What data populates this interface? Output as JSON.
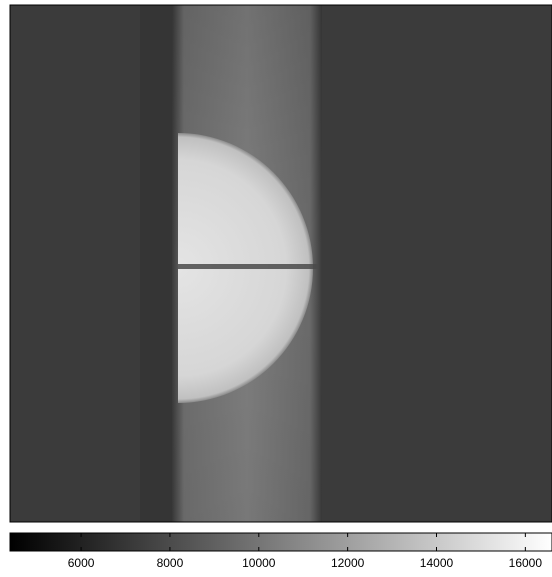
{
  "chart_data": {
    "type": "heatmap",
    "colormap": "gray",
    "clim": [
      4400,
      16600
    ],
    "colorbar_ticks": [
      6000,
      8000,
      10000,
      12000,
      14000,
      16000
    ]
  }
}
